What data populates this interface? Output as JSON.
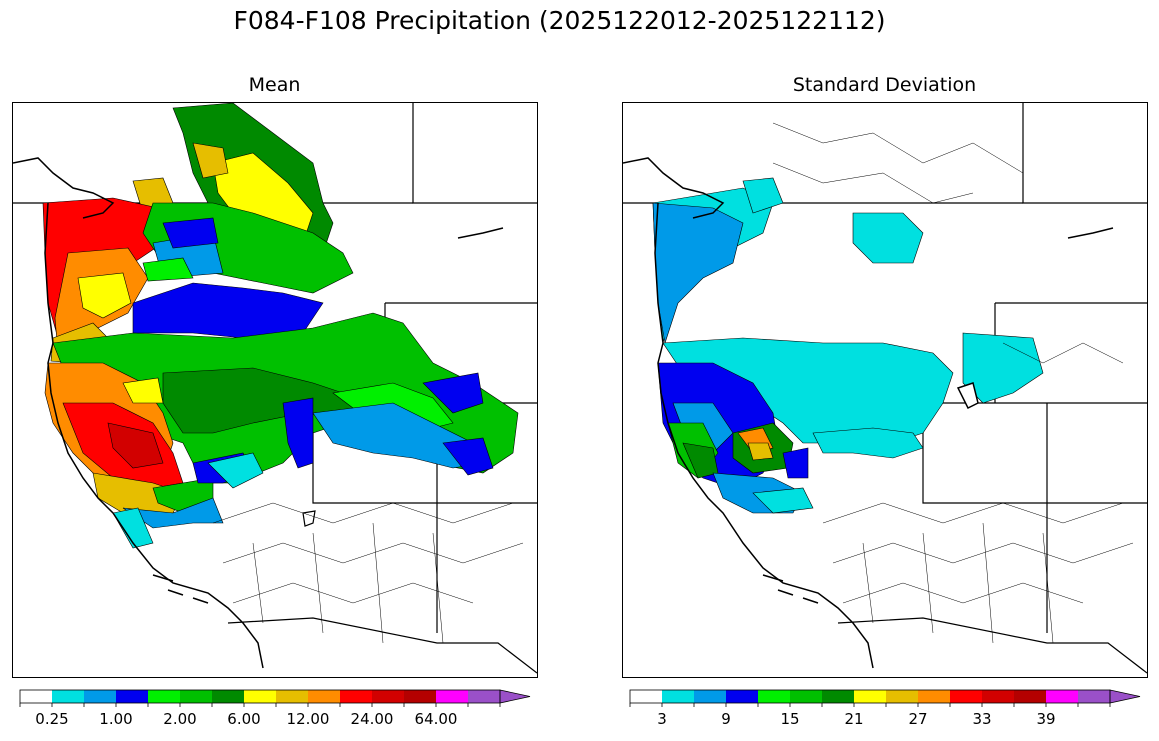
{
  "figure": {
    "title": "F084-F108 Precipitation (2025122012-2025122112)"
  },
  "panels": [
    {
      "title": "Mean",
      "colorbar": {
        "colors": [
          "#ffffff",
          "#00e0e0",
          "#009ae8",
          "#0000f0",
          "#00f000",
          "#00c000",
          "#008a00",
          "#ffff00",
          "#e6be00",
          "#ff8c00",
          "#ff0000",
          "#d20000",
          "#b40000",
          "#ff00ff",
          "#9a50c8"
        ],
        "extend": "max",
        "tick_labels": [
          "0.25",
          "1.00",
          "2.00",
          "6.00",
          "12.00",
          "24.00",
          "64.00"
        ]
      }
    },
    {
      "title": "Standard Deviation",
      "colorbar": {
        "colors": [
          "#ffffff",
          "#00e0e0",
          "#009ae8",
          "#0000f0",
          "#00f000",
          "#00c000",
          "#008a00",
          "#ffff00",
          "#e6be00",
          "#ff8c00",
          "#ff0000",
          "#d20000",
          "#b40000",
          "#ff00ff",
          "#9a50c8"
        ],
        "extend": "max",
        "tick_labels": [
          "3",
          "9",
          "15",
          "21",
          "27",
          "33",
          "39"
        ]
      }
    }
  ],
  "map_regions": {
    "mean": [
      {
        "area": "northern Rockies headwaters",
        "color": "#008a00"
      },
      {
        "area": "northern interior uplands",
        "color": "#ffff00"
      },
      {
        "area": "Olympic and Cascade coast",
        "color": "#ff0000"
      },
      {
        "area": "Oregon coast ranges",
        "color": "#ff8c00"
      },
      {
        "area": "northern Sierra Nevada",
        "color": "#d20000"
      },
      {
        "area": "Columbia Plateau",
        "color": "#0000f0"
      },
      {
        "area": "Great Basin and central Rockies",
        "color": "#00c000"
      },
      {
        "area": "southern Sierra foothills",
        "color": "#009ae8"
      },
      {
        "area": "Desert Southwest",
        "color": "#ffffff"
      }
    ],
    "stdev": [
      {
        "area": "Pacific Northwest coast",
        "color": "#009ae8"
      },
      {
        "area": "northern Sierra Nevada",
        "color": "#ff8c00"
      },
      {
        "area": "central Basin",
        "color": "#00e0e0"
      },
      {
        "area": "northern California",
        "color": "#0000f0"
      },
      {
        "area": "Desert Southwest",
        "color": "#ffffff"
      }
    ]
  }
}
